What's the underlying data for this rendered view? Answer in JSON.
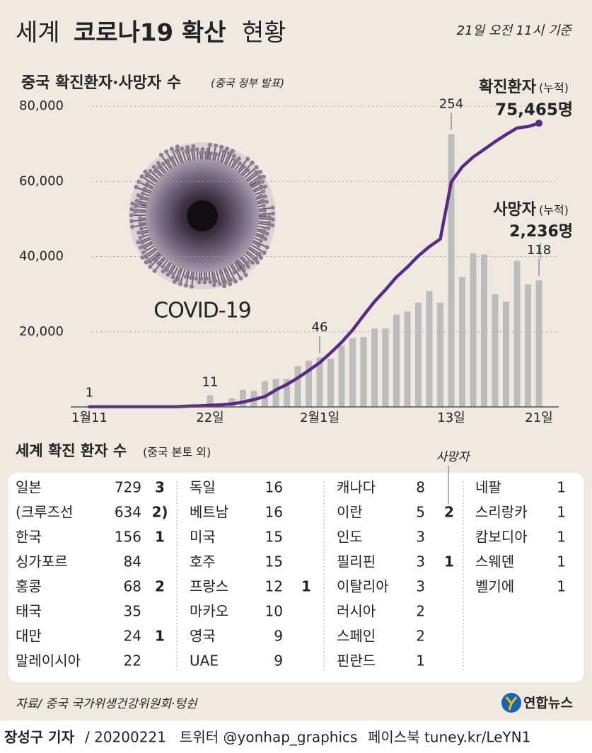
{
  "header": {
    "title_a": "세계",
    "title_b": "코로나19 확산",
    "title_c": "현황",
    "timestamp": "21일 오전 11시 기준"
  },
  "chart_data": {
    "type": "bar",
    "title": "중국 확진환자·사망자 수",
    "subtitle": "(중국 정부 발표)",
    "categories": [
      "1월11",
      null,
      null,
      null,
      null,
      null,
      null,
      null,
      null,
      null,
      null,
      "22일",
      null,
      null,
      null,
      null,
      null,
      null,
      null,
      null,
      null,
      "2월1일",
      null,
      null,
      null,
      null,
      null,
      null,
      null,
      null,
      null,
      null,
      null,
      "13일",
      null,
      null,
      null,
      null,
      null,
      null,
      null,
      "21일"
    ],
    "series": [
      {
        "name": "사망자",
        "type": "bar",
        "axis": "y2",
        "color": "#bdbcbc",
        "values": [
          1,
          0,
          0,
          0,
          0,
          0,
          0,
          0,
          0,
          0,
          0,
          11,
          0,
          8,
          16,
          15,
          24,
          26,
          26,
          38,
          43,
          46,
          45,
          57,
          64,
          65,
          73,
          73,
          86,
          89,
          97,
          108,
          97,
          254,
          121,
          143,
          142,
          105,
          98,
          136,
          114,
          118
        ],
        "value_labels": [
          "1",
          null,
          null,
          null,
          null,
          null,
          null,
          null,
          null,
          null,
          null,
          "11",
          null,
          null,
          null,
          null,
          null,
          null,
          null,
          null,
          null,
          "46",
          null,
          null,
          null,
          null,
          null,
          null,
          null,
          null,
          null,
          null,
          null,
          "254",
          null,
          null,
          null,
          null,
          null,
          null,
          null,
          "118"
        ]
      },
      {
        "name": "확진환자",
        "type": "line",
        "color": "#5b2a86",
        "values": [
          41,
          41,
          41,
          41,
          41,
          41,
          41,
          45,
          62,
          198,
          291,
          440,
          571,
          830,
          1287,
          1975,
          2744,
          4515,
          5974,
          7711,
          9692,
          11791,
          14380,
          17205,
          20438,
          24324,
          28018,
          31161,
          34546,
          37198,
          40171,
          42638,
          44653,
          59804,
          63851,
          66492,
          68500,
          70548,
          72436,
          74185,
          74576,
          75465
        ]
      }
    ],
    "ylim": [
      0,
      80000
    ],
    "yticks": [
      {
        "value": 20000,
        "label": "20,000"
      },
      {
        "value": 40000,
        "label": "40,000"
      },
      {
        "value": 60000,
        "label": "60,000"
      },
      {
        "value": 80000,
        "label": "80,000"
      }
    ],
    "y2lim": [
      0,
      280
    ],
    "grid": true,
    "annotations": [
      "(누적)",
      "75,465명",
      "(누적)",
      "2,236명",
      "COVID-19"
    ]
  },
  "table": {
    "title": "세계 확진 환자 수",
    "note": "(중국 본토 외)",
    "deaths_label": "사망자",
    "columns": [
      [
        [
          "일본",
          729,
          3
        ],
        [
          "(크루즈선",
          634,
          "2)"
        ],
        [
          "한국",
          156,
          1
        ],
        [
          "싱가포르",
          84
        ],
        [
          "홍콩",
          68,
          2
        ],
        [
          "태국",
          35
        ],
        [
          "대만",
          24,
          1
        ],
        [
          "말레이시아",
          22
        ]
      ],
      [
        [
          "독일",
          16
        ],
        [
          "베트남",
          16
        ],
        [
          "미국",
          15
        ],
        [
          "호주",
          15
        ],
        [
          "프랑스",
          12,
          1
        ],
        [
          "마카오",
          10
        ],
        [
          "영국",
          9
        ],
        [
          "UAE",
          9
        ]
      ],
      [
        [
          "캐나다",
          8
        ],
        [
          "이란",
          5,
          2
        ],
        [
          "인도",
          3
        ],
        [
          "필리핀",
          3,
          1
        ],
        [
          "이탈리아",
          3
        ],
        [
          "러시아",
          2
        ],
        [
          "스페인",
          2
        ],
        [
          "핀란드",
          1
        ]
      ],
      [
        [
          "네팔",
          1
        ],
        [
          "스리랑카",
          1
        ],
        [
          "캄보디아",
          1
        ],
        [
          "스웨덴",
          1
        ],
        [
          "벨기에",
          1
        ]
      ]
    ]
  },
  "source": "자료/ 중국 국가위생건강위원회·텅쉰",
  "logo": "연합뉴스",
  "footer": {
    "reporter": "장성구 기자",
    "date": "/ 20200221",
    "twitter": "트위터 @yonhap_graphics",
    "facebook": "페이스북 tuney.kr/LeYN1"
  }
}
